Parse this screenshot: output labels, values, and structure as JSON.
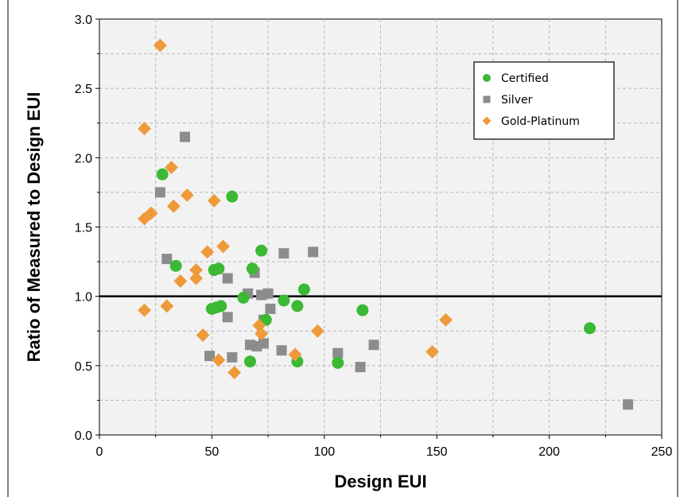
{
  "chart_data": {
    "type": "scatter",
    "title": "",
    "xlabel": "Design EUI",
    "ylabel": "Ratio of Measured to Design EUI",
    "xlim": [
      0,
      250
    ],
    "ylim": [
      0.0,
      3.0
    ],
    "x_ticks": [
      "0",
      "50",
      "100",
      "150",
      "200",
      "250"
    ],
    "y_ticks": [
      "0.0",
      "0.5",
      "1.0",
      "1.5",
      "2.0",
      "2.5",
      "3.0"
    ],
    "x_tick_values": [
      0,
      50,
      100,
      150,
      200,
      250
    ],
    "y_tick_values": [
      0.0,
      0.5,
      1.0,
      1.5,
      2.0,
      2.5,
      3.0
    ],
    "grid": true,
    "reference_line_y": 1.0,
    "legend_position": "top-right",
    "series": [
      {
        "name": "Certified",
        "marker": "circle",
        "color": "#3cb934",
        "points": [
          [
            28,
            1.88
          ],
          [
            34,
            1.22
          ],
          [
            51,
            1.19
          ],
          [
            52,
            0.92
          ],
          [
            53,
            1.2
          ],
          [
            50,
            0.91
          ],
          [
            54,
            0.93
          ],
          [
            59,
            1.72
          ],
          [
            64,
            0.99
          ],
          [
            67,
            0.53
          ],
          [
            68,
            1.2
          ],
          [
            72,
            1.33
          ],
          [
            74,
            0.83
          ],
          [
            82,
            0.97
          ],
          [
            88,
            0.93
          ],
          [
            88,
            0.53
          ],
          [
            91,
            1.05
          ],
          [
            106,
            0.52
          ],
          [
            117,
            0.9
          ],
          [
            218,
            0.77
          ]
        ]
      },
      {
        "name": "Silver",
        "marker": "square",
        "color": "#8c8c8c",
        "points": [
          [
            27,
            1.75
          ],
          [
            30,
            1.27
          ],
          [
            38,
            2.15
          ],
          [
            49,
            0.57
          ],
          [
            57,
            1.13
          ],
          [
            57,
            0.85
          ],
          [
            59,
            0.56
          ],
          [
            66,
            1.02
          ],
          [
            67,
            0.65
          ],
          [
            69,
            1.17
          ],
          [
            70,
            0.64
          ],
          [
            72,
            1.01
          ],
          [
            73,
            0.83
          ],
          [
            73,
            0.66
          ],
          [
            75,
            1.02
          ],
          [
            76,
            0.91
          ],
          [
            81,
            0.61
          ],
          [
            82,
            1.31
          ],
          [
            95,
            1.32
          ],
          [
            106,
            0.59
          ],
          [
            116,
            0.49
          ],
          [
            122,
            0.65
          ],
          [
            235,
            0.22
          ]
        ]
      },
      {
        "name": "Gold-Platinum",
        "marker": "diamond",
        "color": "#ef9a3a",
        "points": [
          [
            27,
            2.81
          ],
          [
            20,
            2.21
          ],
          [
            32,
            1.93
          ],
          [
            20,
            1.56
          ],
          [
            23,
            1.6
          ],
          [
            33,
            1.65
          ],
          [
            39,
            1.73
          ],
          [
            51,
            1.69
          ],
          [
            48,
            1.32
          ],
          [
            55,
            1.36
          ],
          [
            43,
            1.19
          ],
          [
            43,
            1.13
          ],
          [
            36,
            1.11
          ],
          [
            20,
            0.9
          ],
          [
            30,
            0.93
          ],
          [
            46,
            0.72
          ],
          [
            53,
            0.54
          ],
          [
            60,
            0.45
          ],
          [
            71,
            0.79
          ],
          [
            72,
            0.73
          ],
          [
            87,
            0.58
          ],
          [
            97,
            0.75
          ],
          [
            148,
            0.6
          ],
          [
            154,
            0.83
          ]
        ]
      }
    ]
  }
}
